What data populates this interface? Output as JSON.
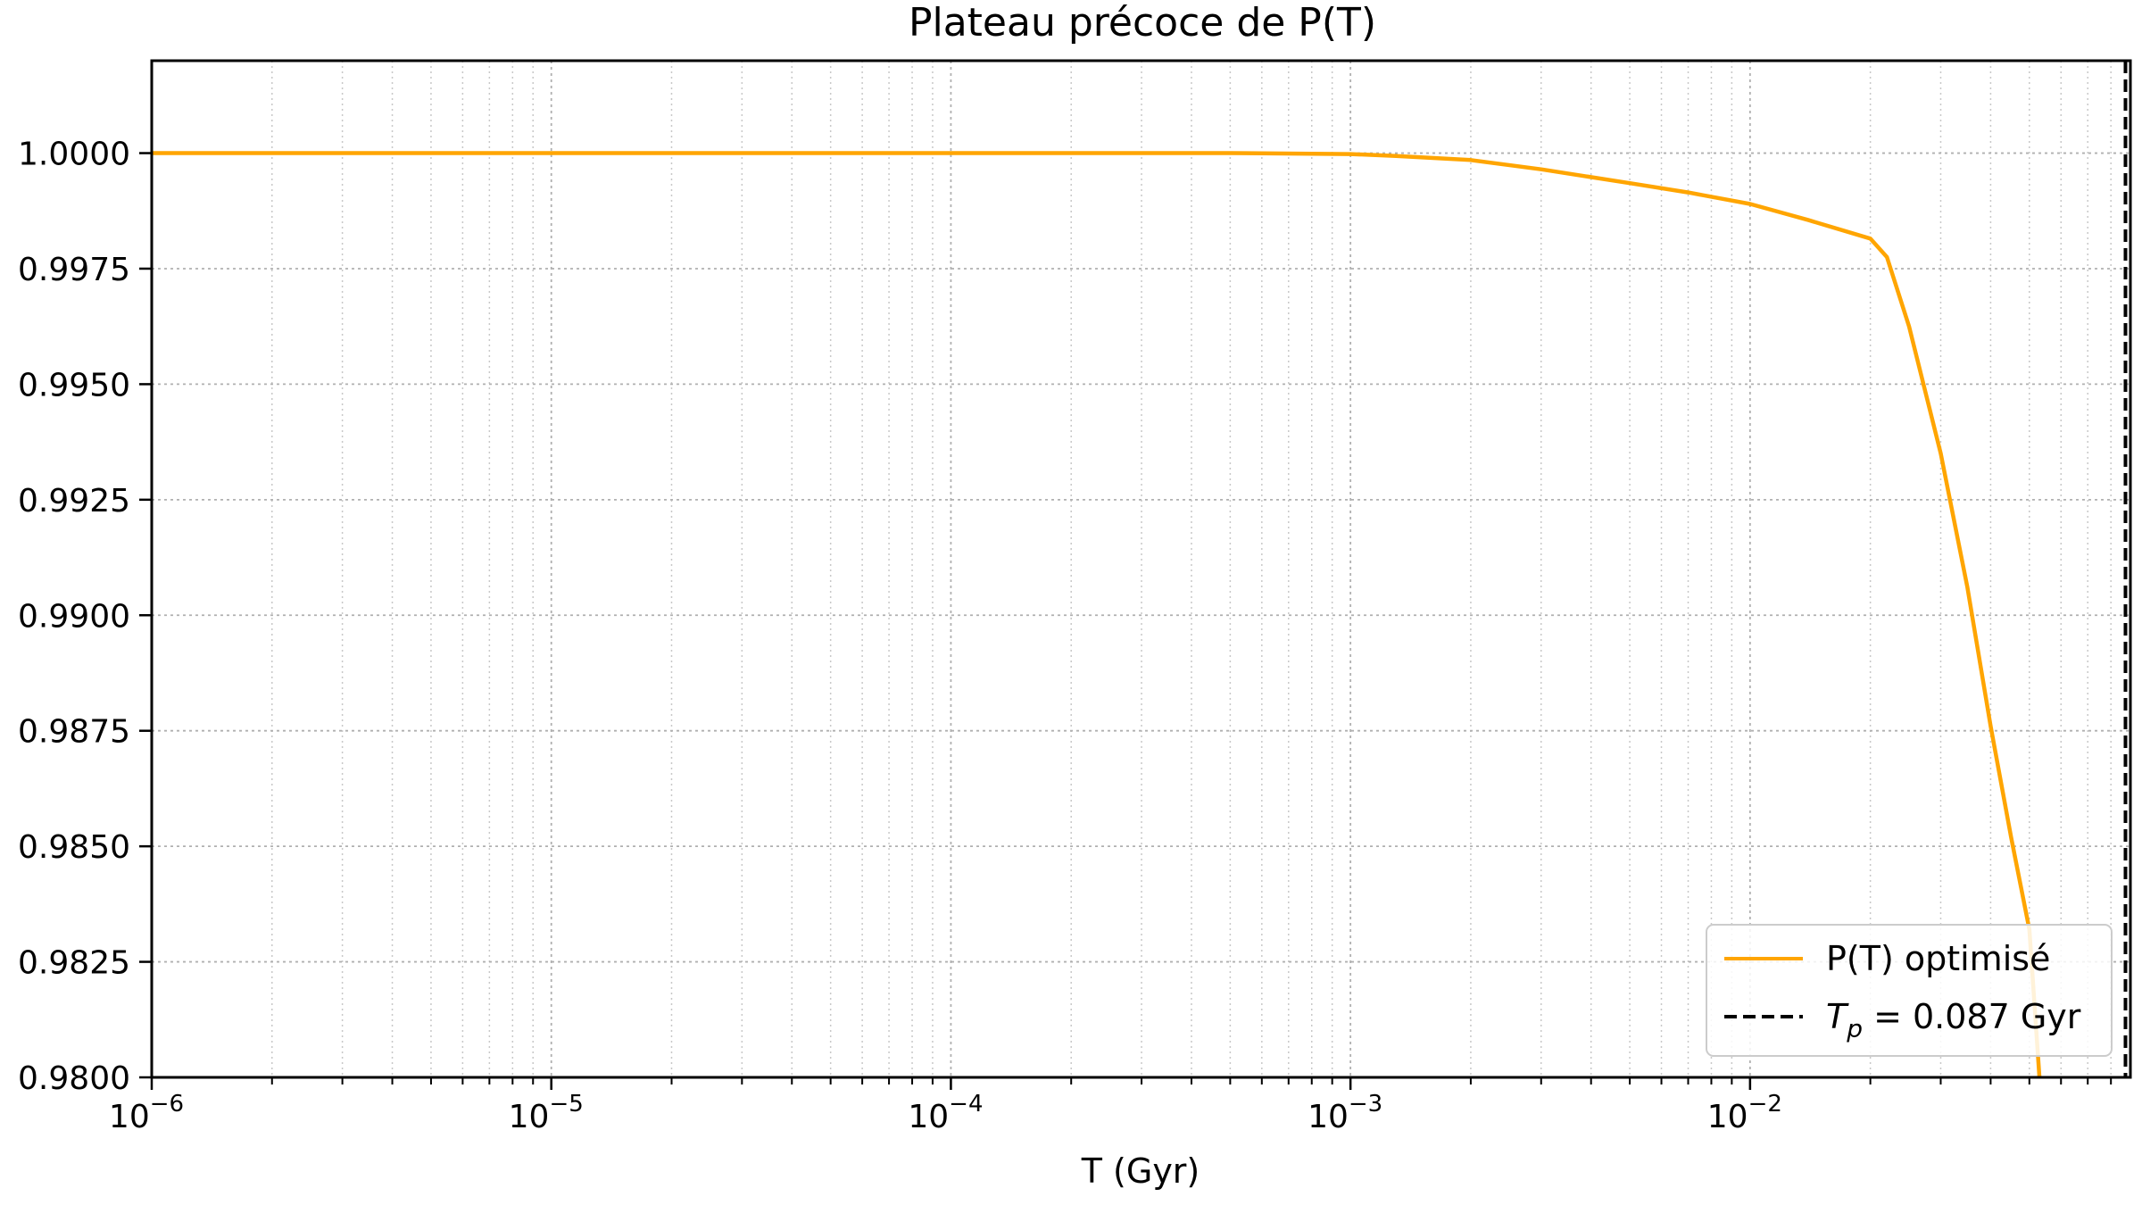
{
  "chart_data": {
    "type": "line",
    "title": "Plateau précoce de P(T)",
    "xlabel": "T (Gyr)",
    "ylabel": "",
    "xscale": "log",
    "xlim": [
      1e-06,
      0.0895
    ],
    "ylim": [
      0.98,
      1.002
    ],
    "grid": "on (major and minor, dotted)",
    "legend_position": "bottom-right",
    "x_ticks": [
      {
        "value": 1e-06,
        "base": "10",
        "exp": "−6"
      },
      {
        "value": 1e-05,
        "base": "10",
        "exp": "−5"
      },
      {
        "value": 0.0001,
        "base": "10",
        "exp": "−4"
      },
      {
        "value": 0.001,
        "base": "10",
        "exp": "−3"
      },
      {
        "value": 0.01,
        "base": "10",
        "exp": "−2"
      }
    ],
    "y_ticks": [
      "0.9800",
      "0.9825",
      "0.9850",
      "0.9875",
      "0.9900",
      "0.9925",
      "0.9950",
      "0.9975",
      "1.0000"
    ],
    "series": [
      {
        "name": "P(T) optimisé",
        "color": "#FFA500",
        "style": "solid",
        "x": [
          1e-06,
          1e-05,
          0.0001,
          0.0005,
          0.001,
          0.0013,
          0.002,
          0.003,
          0.005,
          0.007,
          0.01,
          0.014,
          0.02,
          0.022,
          0.025,
          0.03,
          0.035,
          0.04,
          0.045,
          0.05,
          0.053
        ],
        "y": [
          1.0,
          1.0,
          1.0,
          1.0,
          0.99998,
          0.99994,
          0.99985,
          0.99965,
          0.99935,
          0.99915,
          0.9989,
          0.99855,
          0.99815,
          0.99775,
          0.99625,
          0.9935,
          0.9906,
          0.9876,
          0.9852,
          0.9832,
          0.98
        ]
      },
      {
        "name_parts": {
          "sym": "T",
          "sub": "p",
          "rest": " = 0.087 Gyr"
        },
        "type": "vline",
        "x_value": 0.087,
        "color": "#000000",
        "style": "dashed"
      }
    ]
  }
}
